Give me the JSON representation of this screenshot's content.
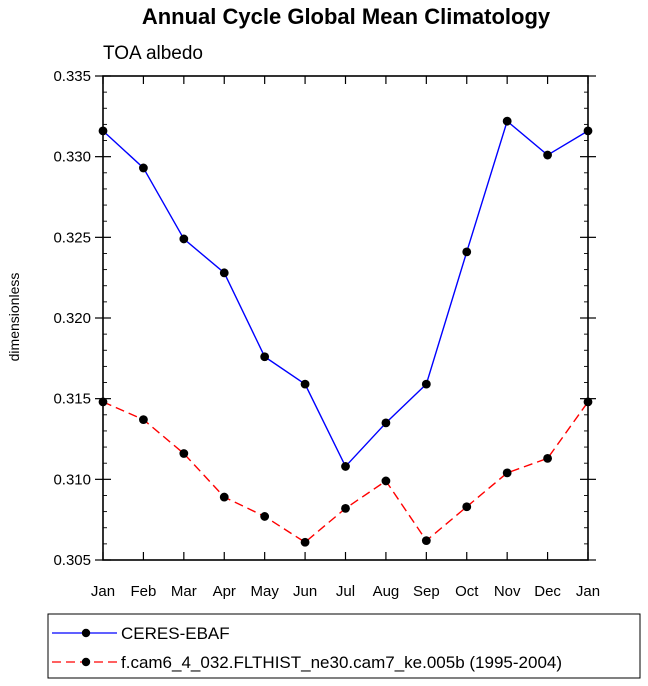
{
  "chart_data": {
    "type": "line",
    "title": "Annual Cycle Global Mean Climatology",
    "subtitle": "TOA albedo",
    "xlabel": "",
    "ylabel": "dimensionless",
    "categories": [
      "Jan",
      "Feb",
      "Mar",
      "Apr",
      "May",
      "Jun",
      "Jul",
      "Aug",
      "Sep",
      "Oct",
      "Nov",
      "Dec",
      "Jan"
    ],
    "ylim": [
      0.305,
      0.335
    ],
    "yticks": [
      "0.305",
      "0.310",
      "0.315",
      "0.320",
      "0.325",
      "0.330",
      "0.335"
    ],
    "yticks_values": [
      0.305,
      0.31,
      0.315,
      0.32,
      0.325,
      0.33,
      0.335
    ],
    "grid": false,
    "legend_position": "bottom",
    "series": [
      {
        "name": "CERES-EBAF",
        "color": "#0000ff",
        "dash": "solid",
        "values": [
          0.3316,
          0.3293,
          0.3249,
          0.3228,
          0.3176,
          0.3159,
          0.3108,
          0.3135,
          0.3159,
          0.3241,
          0.3322,
          0.3301,
          0.3316
        ]
      },
      {
        "name": "f.cam6_4_032.FLTHIST_ne30.cam7_ke.005b (1995-2004)",
        "color": "#ff0000",
        "dash": "dashed",
        "values": [
          0.3148,
          0.3137,
          0.3116,
          0.3089,
          0.3077,
          0.3061,
          0.3082,
          0.3099,
          0.3062,
          0.3083,
          0.3104,
          0.3113,
          0.3148
        ]
      }
    ]
  }
}
